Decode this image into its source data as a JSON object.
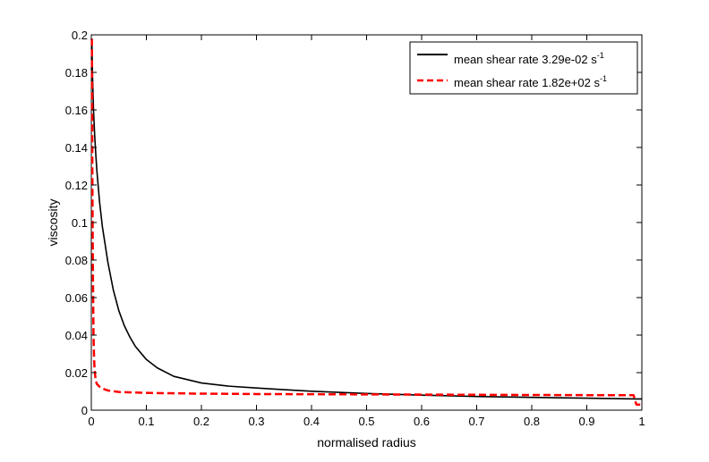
{
  "chart_data": {
    "type": "line",
    "title": "",
    "xlabel": "normalised radius",
    "ylabel": "viscosity",
    "xlim": [
      0,
      1
    ],
    "ylim": [
      0,
      0.2
    ],
    "xticks": [
      0,
      0.1,
      0.2,
      0.3,
      0.4,
      0.5,
      0.6,
      0.7,
      0.8,
      0.9,
      1
    ],
    "xtick_labels": [
      "0",
      "0.1",
      "0.2",
      "0.3",
      "0.4",
      "0.5",
      "0.6",
      "0.7",
      "0.8",
      "0.9",
      "1"
    ],
    "yticks": [
      0,
      0.02,
      0.04,
      0.06,
      0.08,
      0.1,
      0.12,
      0.14,
      0.16,
      0.18,
      0.2
    ],
    "ytick_labels": [
      "0",
      "0.02",
      "0.04",
      "0.06",
      "0.08",
      "0.1",
      "0.12",
      "0.14",
      "0.16",
      "0.18",
      "0.2"
    ],
    "grid": false,
    "legend_position": "top-right",
    "series": [
      {
        "name": "mean shear rate 3.29e-02 s",
        "name_sup": "-1",
        "color": "#000000",
        "style": "solid",
        "x": [
          0.001,
          0.002,
          0.004,
          0.006,
          0.008,
          0.01,
          0.015,
          0.02,
          0.03,
          0.04,
          0.05,
          0.06,
          0.07,
          0.08,
          0.1,
          0.12,
          0.15,
          0.2,
          0.25,
          0.3,
          0.35,
          0.4,
          0.45,
          0.5,
          0.6,
          0.7,
          0.8,
          0.9,
          0.99,
          1.0
        ],
        "y": [
          0.197,
          0.18,
          0.16,
          0.147,
          0.137,
          0.128,
          0.111,
          0.098,
          0.079,
          0.064,
          0.053,
          0.045,
          0.039,
          0.034,
          0.027,
          0.0225,
          0.018,
          0.0145,
          0.0128,
          0.0118,
          0.0109,
          0.0101,
          0.0095,
          0.0089,
          0.008,
          0.0073,
          0.0068,
          0.0064,
          0.006,
          0.006
        ]
      },
      {
        "name": "mean shear rate 1.82e+02 s",
        "name_sup": "-1",
        "color": "#ff0000",
        "style": "dashed",
        "x": [
          0.001,
          0.0015,
          0.002,
          0.003,
          0.004,
          0.005,
          0.006,
          0.008,
          0.01,
          0.015,
          0.02,
          0.03,
          0.05,
          0.1,
          0.2,
          0.3,
          0.4,
          0.5,
          0.6,
          0.7,
          0.8,
          0.9,
          0.985,
          0.99,
          1.0
        ],
        "y": [
          0.198,
          0.17,
          0.12,
          0.07,
          0.04,
          0.028,
          0.021,
          0.016,
          0.014,
          0.0125,
          0.0115,
          0.0105,
          0.0097,
          0.0092,
          0.0088,
          0.0086,
          0.0085,
          0.0084,
          0.0083,
          0.0082,
          0.0081,
          0.008,
          0.008,
          0.003,
          0.003
        ]
      }
    ]
  }
}
